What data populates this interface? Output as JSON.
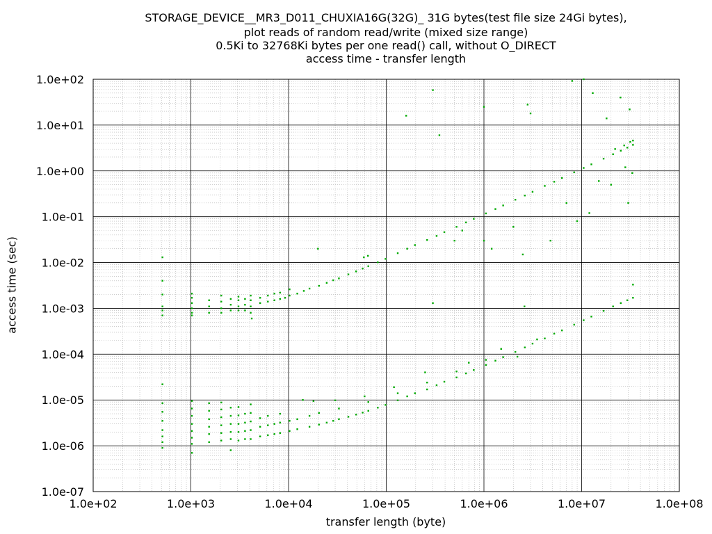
{
  "chart_data": {
    "type": "scatter",
    "title_lines": [
      "STORAGE_DEVICE__MR3_D011_CHUXIA16G(32G)_ 31G bytes(test file size 24Gi bytes),",
      "plot reads of random read/write (mixed size range)",
      "0.5Ki to 32768Ki bytes per one read() call, without O_DIRECT",
      "access time - transfer length"
    ],
    "xlabel": "transfer length (byte)",
    "ylabel": "access time (sec)",
    "xscale": "log",
    "yscale": "log",
    "xlim": [
      100,
      100000000
    ],
    "ylim": [
      1e-07,
      100
    ],
    "x_tick_labels": [
      "1.0e+02",
      "1.0e+03",
      "1.0e+04",
      "1.0e+05",
      "1.0e+06",
      "1.0e+07",
      "1.0e+08"
    ],
    "y_tick_labels": [
      "1.0e-07",
      "1.0e-06",
      "1.0e-05",
      "1.0e-04",
      "1.0e-03",
      "1.0e-02",
      "1.0e-01",
      "1.0e+00",
      "1.0e+01",
      "1.0e+02"
    ],
    "grid": true,
    "marker_color": "#00aa00",
    "series": [
      {
        "points": [
          [
            512,
            0.0009
          ],
          [
            512,
            0.0007
          ],
          [
            512,
            0.0011
          ],
          [
            512,
            0.013
          ],
          [
            512,
            0.004
          ],
          [
            512,
            0.002
          ],
          [
            1024,
            0.0008
          ],
          [
            1024,
            0.001
          ],
          [
            1024,
            0.0013
          ],
          [
            1024,
            0.0017
          ],
          [
            1024,
            0.0021
          ],
          [
            1024,
            0.0007
          ],
          [
            1536,
            0.0008
          ],
          [
            1536,
            0.0011
          ],
          [
            1536,
            0.0015
          ],
          [
            2048,
            0.0008
          ],
          [
            2048,
            0.001
          ],
          [
            2048,
            0.0014
          ],
          [
            2048,
            0.0019
          ],
          [
            2560,
            0.0009
          ],
          [
            2560,
            0.0012
          ],
          [
            2560,
            0.0016
          ],
          [
            3072,
            0.0009
          ],
          [
            3072,
            0.0011
          ],
          [
            3072,
            0.0015
          ],
          [
            3072,
            0.0018
          ],
          [
            3584,
            0.0009
          ],
          [
            3584,
            0.0012
          ],
          [
            3584,
            0.0016
          ],
          [
            4096,
            0.0008
          ],
          [
            4096,
            0.0011
          ],
          [
            4096,
            0.0015
          ],
          [
            4096,
            0.0019
          ],
          [
            5120,
            0.0013
          ],
          [
            5120,
            0.0017
          ],
          [
            6144,
            0.0014
          ],
          [
            6144,
            0.0019
          ],
          [
            7168,
            0.0015
          ],
          [
            7168,
            0.0021
          ],
          [
            8192,
            0.0016
          ],
          [
            8192,
            0.0022
          ],
          [
            9216,
            0.0017
          ],
          [
            10240,
            0.0019
          ],
          [
            10240,
            0.0026
          ],
          [
            12288,
            0.0021
          ],
          [
            14336,
            0.0024
          ],
          [
            16384,
            0.0027
          ],
          [
            20480,
            0.0031
          ],
          [
            24576,
            0.0036
          ],
          [
            28672,
            0.0041
          ],
          [
            32768,
            0.0045
          ],
          [
            40960,
            0.0055
          ],
          [
            49152,
            0.0064
          ],
          [
            57344,
            0.0074
          ],
          [
            65536,
            0.0083
          ],
          [
            81920,
            0.0101
          ],
          [
            98304,
            0.012
          ],
          [
            131072,
            0.016
          ],
          [
            163840,
            0.02
          ],
          [
            196608,
            0.024
          ],
          [
            262144,
            0.031
          ],
          [
            327680,
            0.038
          ],
          [
            393216,
            0.046
          ],
          [
            524288,
            0.06
          ],
          [
            655360,
            0.075
          ],
          [
            786432,
            0.09
          ],
          [
            1048576,
            0.118
          ],
          [
            1310720,
            0.147
          ],
          [
            1572864,
            0.176
          ],
          [
            2097152,
            0.235
          ],
          [
            2621440,
            0.29
          ],
          [
            3145728,
            0.35
          ],
          [
            4194304,
            0.47
          ],
          [
            5242880,
            0.58
          ],
          [
            6291456,
            0.7
          ],
          [
            8388608,
            0.93
          ],
          [
            10485760,
            1.16
          ],
          [
            12582912,
            1.39
          ],
          [
            16777216,
            1.85
          ],
          [
            20971520,
            2.31
          ],
          [
            25165824,
            2.76
          ],
          [
            29360128,
            3.22
          ],
          [
            33554432,
            3.7
          ],
          [
            33554432,
            4.6
          ],
          [
            31457280,
            4.3
          ],
          [
            27262976,
            3.6
          ],
          [
            22020096,
            3.0
          ],
          [
            59000,
            0.013
          ],
          [
            65000,
            0.014
          ],
          [
            20000,
            0.02
          ],
          [
            4200,
            0.0006
          ],
          [
            160000,
            16
          ],
          [
            300000,
            58
          ],
          [
            350000,
            6
          ],
          [
            1000000,
            25
          ],
          [
            2800000,
            28
          ],
          [
            3000000,
            18
          ],
          [
            8000000,
            92
          ],
          [
            10500000,
            100
          ],
          [
            13000000,
            50
          ],
          [
            18000000,
            14
          ],
          [
            25000000,
            40
          ],
          [
            31000000,
            22
          ],
          [
            2500000,
            0.015
          ],
          [
            4800000,
            0.03
          ],
          [
            7000000,
            0.2
          ],
          [
            9000000,
            0.08
          ],
          [
            12000000,
            0.12
          ],
          [
            20000000,
            0.5
          ],
          [
            30000000,
            0.2
          ],
          [
            33000000,
            0.9
          ],
          [
            28000000,
            1.2
          ],
          [
            15000000,
            0.6
          ],
          [
            600000,
            0.05
          ],
          [
            1200000,
            0.02
          ],
          [
            2000000,
            0.06
          ],
          [
            1000000,
            0.03
          ],
          [
            500000,
            0.03
          ],
          [
            300000,
            0.0013
          ]
        ]
      },
      {
        "points": [
          [
            512,
            9e-07
          ],
          [
            512,
            1.2e-06
          ],
          [
            512,
            1.6e-06
          ],
          [
            512,
            2.2e-06
          ],
          [
            512,
            3.5e-06
          ],
          [
            512,
            5.5e-06
          ],
          [
            512,
            8.5e-06
          ],
          [
            512,
            2.2e-05
          ],
          [
            1024,
            7e-07
          ],
          [
            1024,
            1.1e-06
          ],
          [
            1024,
            1.5e-06
          ],
          [
            1024,
            2.1e-06
          ],
          [
            1024,
            3e-06
          ],
          [
            1024,
            4.5e-06
          ],
          [
            1024,
            6.5e-06
          ],
          [
            1024,
            9.5e-06
          ],
          [
            1536,
            1.2e-06
          ],
          [
            1536,
            1.8e-06
          ],
          [
            1536,
            2.6e-06
          ],
          [
            1536,
            3.8e-06
          ],
          [
            1536,
            5.8e-06
          ],
          [
            1536,
            8.5e-06
          ],
          [
            2048,
            1.3e-06
          ],
          [
            2048,
            1.9e-06
          ],
          [
            2048,
            2.8e-06
          ],
          [
            2048,
            4.2e-06
          ],
          [
            2048,
            6.2e-06
          ],
          [
            2048,
            8.8e-06
          ],
          [
            2560,
            8e-07
          ],
          [
            2560,
            1.4e-06
          ],
          [
            2560,
            2e-06
          ],
          [
            2560,
            3e-06
          ],
          [
            2560,
            4.5e-06
          ],
          [
            2560,
            6.8e-06
          ],
          [
            3072,
            1.3e-06
          ],
          [
            3072,
            2e-06
          ],
          [
            3072,
            3e-06
          ],
          [
            3072,
            4.6e-06
          ],
          [
            3072,
            7e-06
          ],
          [
            3584,
            1.4e-06
          ],
          [
            3584,
            2.1e-06
          ],
          [
            3584,
            3.2e-06
          ],
          [
            3584,
            5e-06
          ],
          [
            4096,
            1.4e-06
          ],
          [
            4096,
            2.2e-06
          ],
          [
            4096,
            3.4e-06
          ],
          [
            4096,
            5.2e-06
          ],
          [
            4096,
            8e-06
          ],
          [
            5120,
            1.6e-06
          ],
          [
            5120,
            2.6e-06
          ],
          [
            5120,
            4e-06
          ],
          [
            6144,
            1.7e-06
          ],
          [
            6144,
            2.8e-06
          ],
          [
            6144,
            4.5e-06
          ],
          [
            7168,
            1.8e-06
          ],
          [
            7168,
            3e-06
          ],
          [
            8192,
            1.9e-06
          ],
          [
            8192,
            3.2e-06
          ],
          [
            8192,
            5e-06
          ],
          [
            10240,
            2.1e-06
          ],
          [
            10240,
            3.5e-06
          ],
          [
            12288,
            2.3e-06
          ],
          [
            12288,
            3.8e-06
          ],
          [
            16384,
            2.6e-06
          ],
          [
            16384,
            4.5e-06
          ],
          [
            20480,
            2.9e-06
          ],
          [
            20480,
            5.2e-06
          ],
          [
            24576,
            3.2e-06
          ],
          [
            28672,
            3.5e-06
          ],
          [
            32768,
            3.8e-06
          ],
          [
            32768,
            6.5e-06
          ],
          [
            40960,
            4.3e-06
          ],
          [
            49152,
            4.8e-06
          ],
          [
            57344,
            5.3e-06
          ],
          [
            65536,
            5.8e-06
          ],
          [
            65536,
            9e-06
          ],
          [
            81920,
            6.8e-06
          ],
          [
            98304,
            7.8e-06
          ],
          [
            131072,
            9.8e-06
          ],
          [
            131072,
            1.4e-05
          ],
          [
            163840,
            1.2e-05
          ],
          [
            196608,
            1.4e-05
          ],
          [
            262144,
            1.7e-05
          ],
          [
            262144,
            2.4e-05
          ],
          [
            327680,
            2.1e-05
          ],
          [
            393216,
            2.5e-05
          ],
          [
            524288,
            3.1e-05
          ],
          [
            524288,
            4.2e-05
          ],
          [
            655360,
            3.8e-05
          ],
          [
            786432,
            4.5e-05
          ],
          [
            1048576,
            5.8e-05
          ],
          [
            1048576,
            7.5e-05
          ],
          [
            1310720,
            7.2e-05
          ],
          [
            1572864,
            8.6e-05
          ],
          [
            2097152,
            0.000112
          ],
          [
            2621440,
            0.00014
          ],
          [
            3145728,
            0.00017
          ],
          [
            4194304,
            0.00022
          ],
          [
            5242880,
            0.00028
          ],
          [
            6291456,
            0.00033
          ],
          [
            8388608,
            0.00044
          ],
          [
            10485760,
            0.00055
          ],
          [
            12582912,
            0.00066
          ],
          [
            16777216,
            0.00088
          ],
          [
            20971520,
            0.0011
          ],
          [
            25165824,
            0.0013
          ],
          [
            29360128,
            0.0015
          ],
          [
            33554432,
            0.0017
          ],
          [
            33554432,
            0.0033
          ],
          [
            14000,
            1e-05
          ],
          [
            18000,
            9.5e-06
          ],
          [
            30000,
            9.8e-06
          ],
          [
            60000,
            1.2e-05
          ],
          [
            120000,
            1.9e-05
          ],
          [
            250000,
            4e-05
          ],
          [
            700000,
            6.5e-05
          ],
          [
            1500000,
            0.00013
          ],
          [
            2200000,
            8.8e-05
          ],
          [
            3500000,
            0.00021
          ],
          [
            2600000,
            0.0011
          ]
        ]
      }
    ]
  }
}
